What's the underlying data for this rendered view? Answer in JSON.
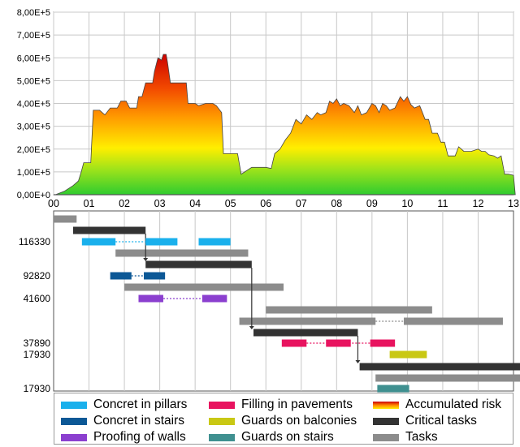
{
  "chart_data": [
    {
      "type": "area",
      "x_axis": {
        "ticks": [
          "00",
          "01",
          "02",
          "03",
          "04",
          "05",
          "06",
          "07",
          "08",
          "09",
          "10",
          "11",
          "12",
          "13"
        ],
        "range": [
          0,
          13
        ]
      },
      "y_axis": {
        "ticks": [
          "0,00E+0",
          "1,00E+5",
          "2,00E+5",
          "3,00E+5",
          "4,00E+5",
          "5,00E+5",
          "6,00E+5",
          "7,00E+5",
          "8,00E+5"
        ],
        "range": [
          0,
          800000
        ]
      },
      "grid": "vertical-and-horizontal",
      "fill": "vertical gradient green-yellow-orange-red by risk level",
      "series": [
        {
          "name": "Accumulated risk",
          "points": [
            [
              0.05,
              0
            ],
            [
              0.3,
              15000
            ],
            [
              0.55,
              40000
            ],
            [
              0.7,
              60000
            ],
            [
              0.78,
              100000
            ],
            [
              0.85,
              140000
            ],
            [
              0.95,
              140000
            ],
            [
              1.05,
              140000
            ],
            [
              1.12,
              370000
            ],
            [
              1.3,
              370000
            ],
            [
              1.45,
              350000
            ],
            [
              1.6,
              380000
            ],
            [
              1.8,
              380000
            ],
            [
              1.9,
              410000
            ],
            [
              2.05,
              410000
            ],
            [
              2.15,
              380000
            ],
            [
              2.35,
              380000
            ],
            [
              2.4,
              430000
            ],
            [
              2.5,
              430000
            ],
            [
              2.6,
              490000
            ],
            [
              2.8,
              490000
            ],
            [
              2.85,
              540000
            ],
            [
              2.95,
              600000
            ],
            [
              3.05,
              590000
            ],
            [
              3.1,
              615000
            ],
            [
              3.18,
              615000
            ],
            [
              3.22,
              580000
            ],
            [
              3.3,
              490000
            ],
            [
              3.5,
              490000
            ],
            [
              3.75,
              490000
            ],
            [
              3.8,
              400000
            ],
            [
              4.0,
              400000
            ],
            [
              4.1,
              390000
            ],
            [
              4.3,
              400000
            ],
            [
              4.5,
              400000
            ],
            [
              4.6,
              390000
            ],
            [
              4.75,
              360000
            ],
            [
              4.8,
              180000
            ],
            [
              5.0,
              180000
            ],
            [
              5.2,
              180000
            ],
            [
              5.3,
              90000
            ],
            [
              5.6,
              120000
            ],
            [
              6.0,
              120000
            ],
            [
              6.15,
              115000
            ],
            [
              6.25,
              180000
            ],
            [
              6.4,
              200000
            ],
            [
              6.55,
              240000
            ],
            [
              6.7,
              270000
            ],
            [
              6.85,
              330000
            ],
            [
              7.0,
              310000
            ],
            [
              7.15,
              350000
            ],
            [
              7.3,
              330000
            ],
            [
              7.45,
              360000
            ],
            [
              7.55,
              350000
            ],
            [
              7.7,
              360000
            ],
            [
              7.8,
              410000
            ],
            [
              7.9,
              400000
            ],
            [
              8.0,
              420000
            ],
            [
              8.1,
              390000
            ],
            [
              8.2,
              400000
            ],
            [
              8.35,
              390000
            ],
            [
              8.5,
              360000
            ],
            [
              8.6,
              390000
            ],
            [
              8.7,
              350000
            ],
            [
              8.85,
              360000
            ],
            [
              9.0,
              400000
            ],
            [
              9.1,
              390000
            ],
            [
              9.2,
              360000
            ],
            [
              9.3,
              400000
            ],
            [
              9.4,
              390000
            ],
            [
              9.5,
              370000
            ],
            [
              9.65,
              380000
            ],
            [
              9.8,
              430000
            ],
            [
              9.9,
              410000
            ],
            [
              10.0,
              430000
            ],
            [
              10.1,
              395000
            ],
            [
              10.2,
              380000
            ],
            [
              10.35,
              390000
            ],
            [
              10.5,
              330000
            ],
            [
              10.6,
              330000
            ],
            [
              10.7,
              270000
            ],
            [
              10.85,
              270000
            ],
            [
              10.95,
              230000
            ],
            [
              11.05,
              230000
            ],
            [
              11.15,
              170000
            ],
            [
              11.35,
              170000
            ],
            [
              11.45,
              210000
            ],
            [
              11.6,
              190000
            ],
            [
              11.8,
              190000
            ],
            [
              12.0,
              200000
            ],
            [
              12.1,
              190000
            ],
            [
              12.2,
              190000
            ],
            [
              12.3,
              175000
            ],
            [
              12.45,
              170000
            ],
            [
              12.55,
              160000
            ],
            [
              12.65,
              170000
            ],
            [
              12.75,
              90000
            ],
            [
              12.85,
              90000
            ],
            [
              13.0,
              85000
            ],
            [
              13.05,
              0
            ]
          ]
        }
      ]
    },
    {
      "type": "gantt",
      "time_range": [
        0,
        13
      ],
      "row_labels": [
        "116330",
        "92820",
        "41600",
        "37890",
        "17930",
        "17930"
      ],
      "series": [
        {
          "name": "Concret in pillars",
          "color": "#1ab0ec",
          "segments": [
            [
              0.8,
              1.75
            ],
            [
              2.6,
              3.5
            ],
            [
              4.1,
              5.0
            ]
          ],
          "link": [
            1.75,
            2.6
          ]
        },
        {
          "name": "Concret in stairs",
          "color": "#0c5896",
          "segments": [
            [
              1.6,
              2.2
            ],
            [
              2.55,
              3.15
            ]
          ],
          "link": [
            2.2,
            2.55
          ]
        },
        {
          "name": "Proofing of walls",
          "color": "#8b3fcf",
          "segments": [
            [
              2.4,
              3.1
            ],
            [
              4.2,
              4.9
            ]
          ],
          "link": [
            3.1,
            4.2
          ]
        },
        {
          "name": "Filling in pavements",
          "color": "#e8135f",
          "segments": [
            [
              6.45,
              7.15
            ],
            [
              7.7,
              8.4
            ],
            [
              8.95,
              9.65
            ]
          ],
          "link": [
            7.15,
            8.95
          ]
        },
        {
          "name": "Guards on balconies",
          "color": "#c9c814",
          "segments": [
            [
              9.5,
              10.55
            ]
          ]
        },
        {
          "name": "Guards on stairs",
          "color": "#3f9090",
          "segments": [
            [
              9.15,
              10.05
            ]
          ]
        },
        {
          "name": "Critical tasks",
          "color": "#333333",
          "segments": [
            [
              0.6,
              2.6
            ],
            [
              2.6,
              5.6
            ],
            [
              5.65,
              8.6
            ],
            [
              8.65,
              13.2
            ],
            [
              0.55,
              2.6
            ]
          ],
          "rows_y": [
            286,
            326,
            410,
            452,
            286
          ],
          "bars": [
            {
              "start": 0.55,
              "end": 2.6
            },
            {
              "start": 2.6,
              "end": 5.6
            },
            {
              "start": 5.65,
              "end": 8.6
            },
            {
              "start": 8.65,
              "end": 13.2
            }
          ]
        },
        {
          "name": "Tasks",
          "color": "#8c8c8c",
          "bars": [
            {
              "start": 0.0,
              "end": 0.65
            },
            {
              "start": 1.75,
              "end": 5.5
            },
            {
              "start": 2.0,
              "end": 6.5
            },
            {
              "start": 6.0,
              "end": 10.7
            },
            {
              "start": 5.25,
              "end": 9.1
            },
            {
              "start": 9.9,
              "end": 12.7
            },
            {
              "start": 9.1,
              "end": 13.2
            }
          ],
          "links": [
            [
              9.1,
              9.9
            ]
          ]
        }
      ]
    }
  ],
  "legend": {
    "items": [
      {
        "label": "Concret in pillars",
        "color": "#1ab0ec",
        "style": "solid"
      },
      {
        "label": "Filling in pavements",
        "color": "#e8135f",
        "style": "solid"
      },
      {
        "label": "Accumulated risk",
        "color": "#e8135f",
        "style": "risk-gradient"
      },
      {
        "label": "Concret in stairs",
        "color": "#0c5896",
        "style": "solid"
      },
      {
        "label": "Guards on balconies",
        "color": "#c9c814",
        "style": "solid"
      },
      {
        "label": "Critical tasks",
        "color": "#333333",
        "style": "solid"
      },
      {
        "label": "Proofing of walls",
        "color": "#8b3fcf",
        "style": "solid"
      },
      {
        "label": "Guards on stairs",
        "color": "#3f9090",
        "style": "solid"
      },
      {
        "label": "Tasks",
        "color": "#8c8c8c",
        "style": "solid"
      }
    ]
  },
  "colors": {
    "grid": "#c8c8c8",
    "axis": "#555555",
    "risk_low": "#2fcc2f",
    "risk_mid": "#ffee00",
    "risk_high": "#cc0000"
  }
}
